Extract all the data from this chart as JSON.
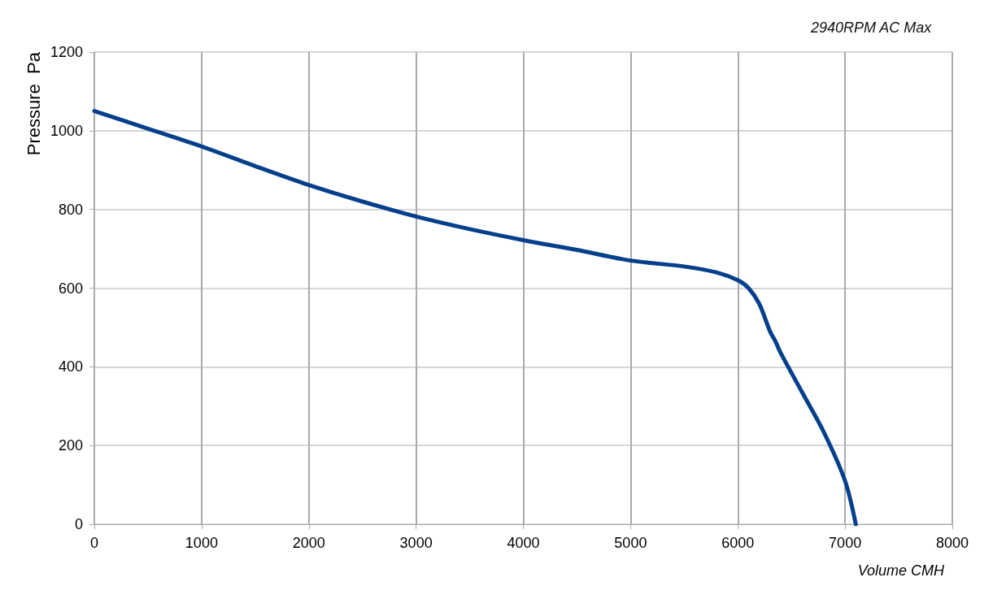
{
  "chart_data": {
    "type": "line",
    "title": "2940RPM AC Max",
    "xlabel": "Volume CMH",
    "ylabel": "Pressure  Pa",
    "xlim": [
      0,
      8000
    ],
    "xticks": [
      0,
      1000,
      2000,
      3000,
      4000,
      5000,
      6000,
      7000,
      8000
    ],
    "ylim": [
      0,
      1200
    ],
    "yticks": [
      0,
      200,
      400,
      600,
      800,
      1000,
      1200
    ],
    "grid": true,
    "marker": "none",
    "line_style": "solid",
    "series": [
      {
        "color": "#043f8c",
        "x": [
          0,
          500,
          1000,
          1500,
          2000,
          2500,
          3000,
          3500,
          4000,
          4500,
          5000,
          5500,
          5800,
          6000,
          6100,
          6200,
          6300,
          6350,
          6400,
          6600,
          6800,
          7000,
          7100
        ],
        "values": [
          1050,
          1005,
          960,
          910,
          862,
          820,
          782,
          750,
          722,
          697,
          670,
          655,
          640,
          620,
          600,
          560,
          490,
          465,
          435,
          335,
          235,
          110,
          0
        ]
      }
    ]
  }
}
